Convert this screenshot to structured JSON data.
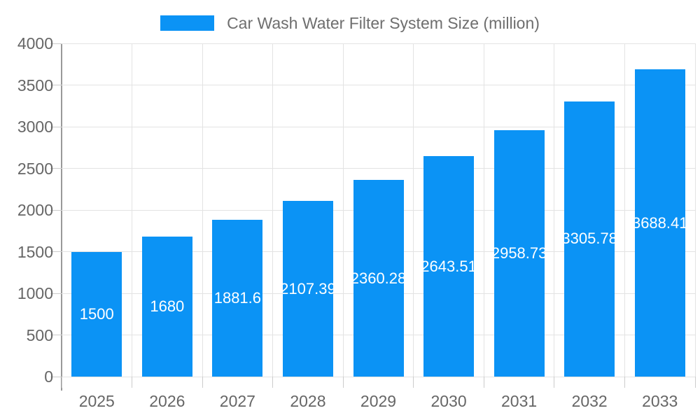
{
  "chart_data": {
    "type": "bar",
    "title": "Car Wash Water Filter System Size (million)",
    "categories": [
      "2025",
      "2026",
      "2027",
      "2028",
      "2029",
      "2030",
      "2031",
      "2032",
      "2033"
    ],
    "values": [
      1500,
      1680,
      1881.6,
      2107.39,
      2360.28,
      2643.51,
      2958.73,
      3305.78,
      3688.41
    ],
    "value_labels": [
      "1500",
      "1680",
      "1881.6",
      "2107.39",
      "2360.28",
      "2643.51",
      "2958.73",
      "3305.78",
      "3688.41"
    ],
    "xlabel": "",
    "ylabel": "",
    "ylim": [
      0,
      4000
    ],
    "ytick_step": 500,
    "ytick_labels": [
      "0",
      "500",
      "1000",
      "1500",
      "2000",
      "2500",
      "3000",
      "3500",
      "4000"
    ],
    "grid": true,
    "legend_position": "top-center",
    "colors": {
      "bar": "#0b93f5",
      "axis_text": "#666666",
      "legend_text": "#6e6e6e",
      "gridline": "#e3e3e3",
      "tick": "#cccccc",
      "axis_line": "#999999",
      "value_label_text": "#ffffff",
      "background": "#ffffff"
    }
  }
}
